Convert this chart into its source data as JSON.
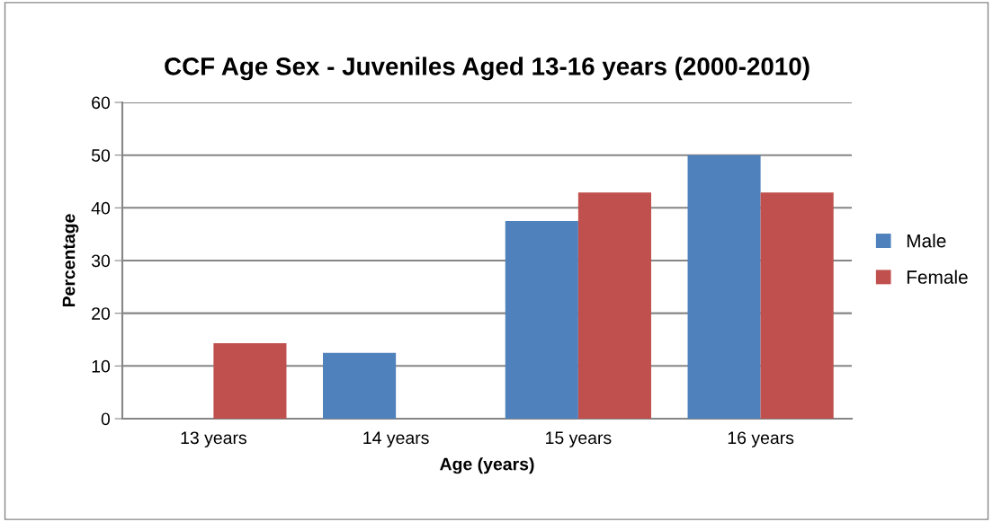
{
  "chart_data": {
    "type": "bar",
    "title": "CCF Age Sex - Juveniles Aged 13-16 years (2000-2010)",
    "xlabel": "Age (years)",
    "ylabel": "Percentage",
    "categories": [
      "13 years",
      "14 years",
      "15 years",
      "16 years"
    ],
    "series": [
      {
        "name": "Male",
        "color": "#4f81bd",
        "values": [
          null,
          12.5,
          37.5,
          50
        ]
      },
      {
        "name": "Female",
        "color": "#c0504d",
        "values": [
          14.3,
          null,
          42.9,
          42.9
        ]
      }
    ],
    "ylim": [
      0,
      60
    ],
    "yticks": [
      0,
      10,
      20,
      30,
      40,
      50,
      60
    ],
    "grid": "y",
    "legend": "right"
  }
}
